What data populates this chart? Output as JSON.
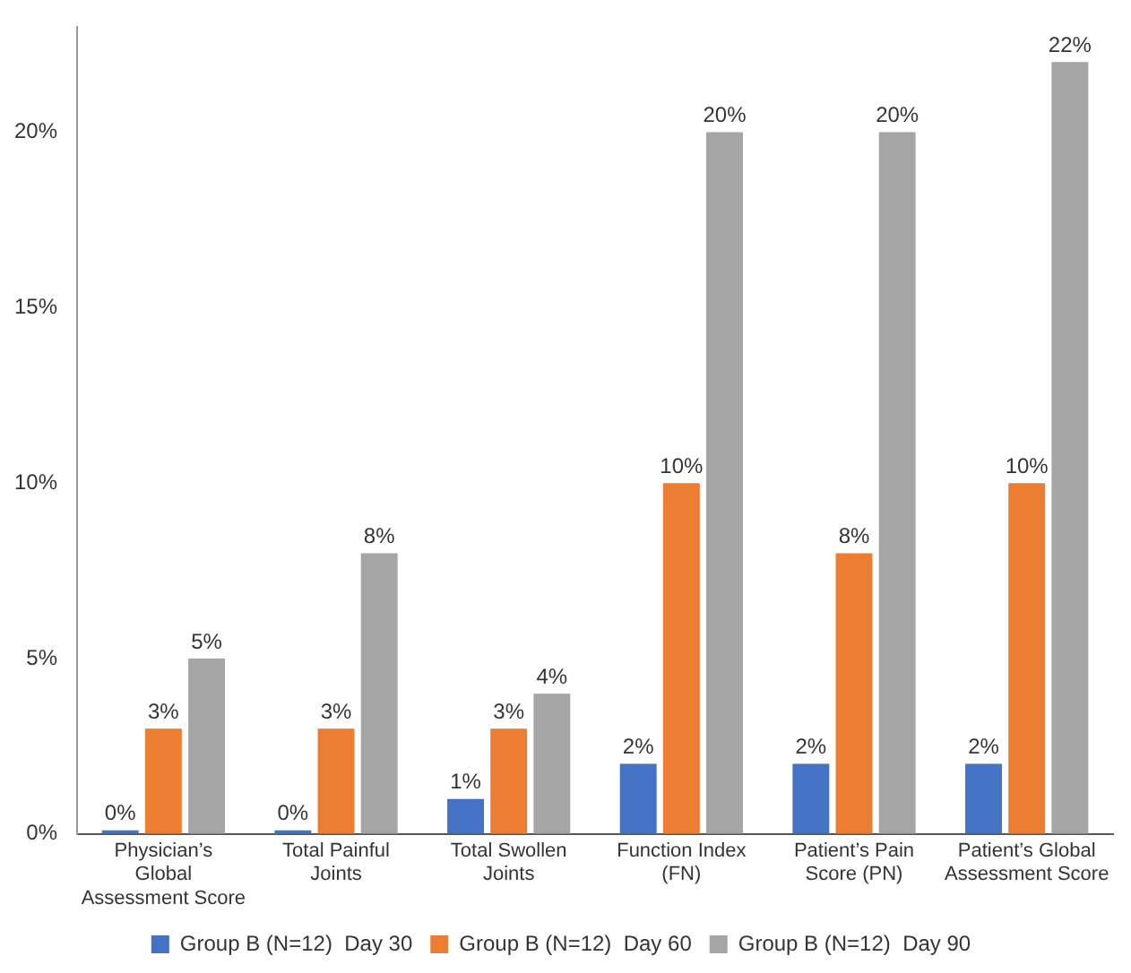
{
  "chart_data": {
    "type": "bar",
    "categories": [
      "Physician’s Global Assessment Score",
      "Total Painful Joints",
      "Total Swollen Joints",
      "Function Index (FN)",
      "Patient’s Pain Score (PN)",
      "Patient’s Global Assessment Score"
    ],
    "series": [
      {
        "name": "Group B (N=12)  Day 30",
        "color": "#4472c4",
        "values": [
          0,
          0,
          1,
          2,
          2,
          2
        ],
        "value_labels": [
          "0%",
          "0%",
          "1%",
          "2%",
          "2%",
          "2%"
        ]
      },
      {
        "name": "Group B (N=12)  Day 60",
        "color": "#ed7d31",
        "values": [
          3,
          3,
          3,
          10,
          8,
          10
        ],
        "value_labels": [
          "3%",
          "3%",
          "3%",
          "10%",
          "8%",
          "10%"
        ]
      },
      {
        "name": "Group B (N=12)  Day 90",
        "color": "#a5a5a5",
        "values": [
          5,
          8,
          4,
          20,
          20,
          22
        ],
        "value_labels": [
          "5%",
          "8%",
          "4%",
          "20%",
          "20%",
          "22%"
        ]
      }
    ],
    "ylim": [
      0,
      23
    ],
    "yticks": [
      {
        "value": 0,
        "label": "0%"
      },
      {
        "value": 5,
        "label": "5%"
      },
      {
        "value": 10,
        "label": "10%"
      },
      {
        "value": 15,
        "label": "15%"
      },
      {
        "value": 20,
        "label": "20%"
      }
    ],
    "grid": false,
    "legend": "bottom"
  }
}
